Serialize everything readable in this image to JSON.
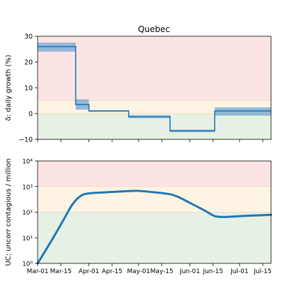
{
  "figure": {
    "title": "Quebec"
  },
  "colors": {
    "line": "#1f77b4",
    "band": "#6fa8d6",
    "zone_red": "#fde4e4",
    "zone_yellow": "#fdf4e4",
    "zone_green": "#e6f0e4",
    "zone_line": "#f2c9a8"
  },
  "chart_data": [
    {
      "type": "line",
      "title": "Quebec",
      "xlabel": "",
      "ylabel": "δ: daily growth (%)",
      "ylim": [
        -10,
        30
      ],
      "yticks": [
        -10,
        0,
        10,
        20,
        30
      ],
      "ytick_labels": [
        "−10",
        "0",
        "10",
        "20",
        "30"
      ],
      "xlim": [
        "2020-03-01",
        "2020-07-20"
      ],
      "zones": [
        {
          "from": -10,
          "to": 0,
          "color": "green"
        },
        {
          "from": 0,
          "to": 5,
          "color": "yellow"
        },
        {
          "from": 5,
          "to": 30,
          "color": "red"
        }
      ],
      "series": [
        {
          "steps": [
            {
              "start": "2020-03-01",
              "end": "2020-03-24",
              "value": 26,
              "low": 24,
              "high": 27.5
            },
            {
              "start": "2020-03-24",
              "end": "2020-03-32",
              "value": 3.5,
              "low": 1.5,
              "high": 5.5
            },
            {
              "start": "2020-04-01",
              "end": "2020-04-25",
              "value": 1,
              "low": 0.7,
              "high": 1.3
            },
            {
              "start": "2020-04-25",
              "end": "2020-05-20",
              "value": -1.2,
              "low": -1.8,
              "high": -0.7
            },
            {
              "start": "2020-05-20",
              "end": "2020-06-16",
              "value": -6.7,
              "low": -7.2,
              "high": -6.2
            },
            {
              "start": "2020-06-16",
              "end": "2020-07-20",
              "value": 1,
              "low": -0.8,
              "high": 2.4
            }
          ]
        }
      ]
    },
    {
      "type": "line",
      "title": "",
      "xlabel": "",
      "ylabel": "UC: uncorr contagious / million",
      "yscale": "log",
      "ylim": [
        1,
        10000
      ],
      "yticks": [
        1,
        10,
        100,
        1000,
        10000
      ],
      "ytick_labels": [
        "10⁰",
        "10¹",
        "10²",
        "10³",
        "10⁴"
      ],
      "xlim": [
        "2020-03-01",
        "2020-07-20"
      ],
      "xtick_labels": [
        "Mar-01",
        "Mar-15",
        "Apr-01",
        "Apr-15",
        "May-01",
        "May-15",
        "Jun-01",
        "Jun-15",
        "Jul-01",
        "Jul-15"
      ],
      "xtick_dates": [
        "2020-03-01",
        "2020-03-15",
        "2020-04-01",
        "2020-04-15",
        "2020-05-01",
        "2020-05-15",
        "2020-06-01",
        "2020-06-15",
        "2020-07-01",
        "2020-07-15"
      ],
      "zones": [
        {
          "from": 1,
          "to": 100,
          "color": "green"
        },
        {
          "from": 100,
          "to": 1000,
          "color": "yellow"
        },
        {
          "from": 1000,
          "to": 10000,
          "color": "red"
        }
      ],
      "series": [
        {
          "x": [
            "2020-03-01",
            "2020-03-10",
            "2020-03-17",
            "2020-03-22",
            "2020-03-27",
            "2020-04-01",
            "2020-04-10",
            "2020-04-20",
            "2020-04-30",
            "2020-05-10",
            "2020-05-20",
            "2020-05-25",
            "2020-06-01",
            "2020-06-10",
            "2020-06-16",
            "2020-06-22",
            "2020-07-01",
            "2020-07-10",
            "2020-07-20"
          ],
          "y": [
            1,
            9,
            55,
            200,
            430,
            540,
            590,
            640,
            680,
            600,
            500,
            390,
            230,
            115,
            70,
            65,
            70,
            74,
            79
          ]
        }
      ]
    }
  ]
}
